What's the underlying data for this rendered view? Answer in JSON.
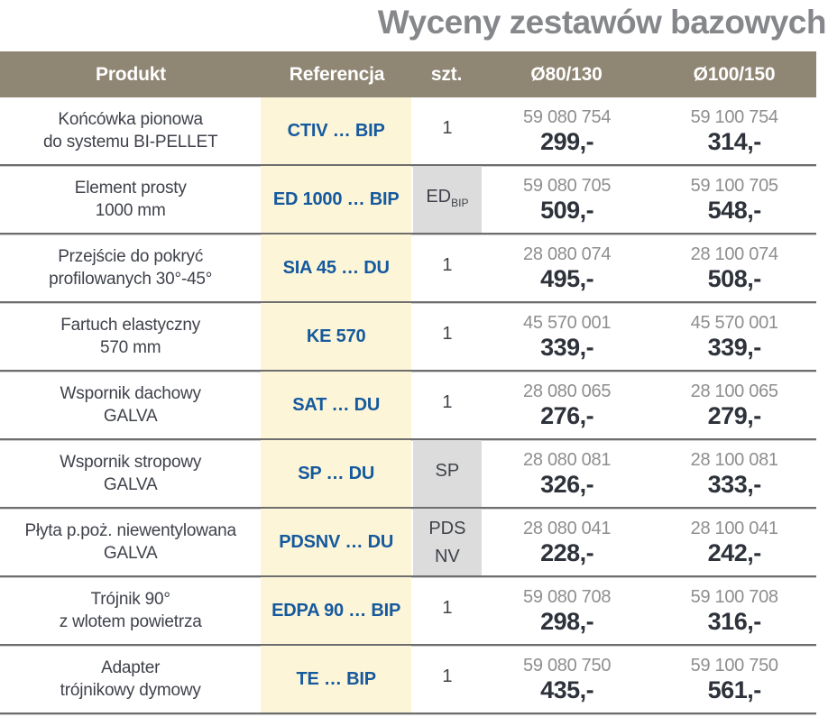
{
  "title": "Wyceny zestawów bazowych",
  "colors": {
    "header_bg": "#8f8674",
    "header_text": "#ffffff",
    "reference_col_bg": "#fcf5d8",
    "reference_text": "#15599e",
    "qty_gray_bg": "#dcdcdc",
    "price_text": "#2e323a",
    "article_code_text": "#8e8e8e",
    "title_text": "#85878a",
    "row_separator": "#6e6e6e"
  },
  "table": {
    "columns": [
      "Produkt",
      "Referencja",
      "szt.",
      "Ø80/130",
      "Ø100/150"
    ],
    "rows": [
      {
        "product_line1": "Końcówka pionowa",
        "product_line2": "do systemu BI-PELLET",
        "reference": "CTIV … BIP",
        "qty": {
          "line1": "1",
          "sub": "",
          "line2": "",
          "gray": false
        },
        "d80": {
          "code": "59 080 754",
          "price": "299,-"
        },
        "d100": {
          "code": "59 100 754",
          "price": "314,-"
        }
      },
      {
        "product_line1": "Element prosty",
        "product_line2": "1000 mm",
        "reference": "ED 1000 … BIP",
        "qty": {
          "line1": "ED",
          "sub": "BIP",
          "line2": "",
          "gray": true
        },
        "d80": {
          "code": "59 080 705",
          "price": "509,-"
        },
        "d100": {
          "code": "59 100 705",
          "price": "548,-"
        }
      },
      {
        "product_line1": "Przejście do pokryć",
        "product_line2": "profilowanych 30°-45°",
        "reference": "SIA 45 … DU",
        "qty": {
          "line1": "1",
          "sub": "",
          "line2": "",
          "gray": false
        },
        "d80": {
          "code": "28 080 074",
          "price": "495,-"
        },
        "d100": {
          "code": "28 100 074",
          "price": "508,-"
        }
      },
      {
        "product_line1": "Fartuch elastyczny",
        "product_line2": "570 mm",
        "reference": "KE 570",
        "qty": {
          "line1": "1",
          "sub": "",
          "line2": "",
          "gray": false
        },
        "d80": {
          "code": "45 570 001",
          "price": "339,-"
        },
        "d100": {
          "code": "45 570 001",
          "price": "339,-"
        }
      },
      {
        "product_line1": "Wspornik dachowy",
        "product_line2": "GALVA",
        "reference": "SAT … DU",
        "qty": {
          "line1": "1",
          "sub": "",
          "line2": "",
          "gray": false
        },
        "d80": {
          "code": "28 080 065",
          "price": "276,-"
        },
        "d100": {
          "code": "28 100 065",
          "price": "279,-"
        }
      },
      {
        "product_line1": "Wspornik stropowy",
        "product_line2": "GALVA",
        "reference": "SP … DU",
        "qty": {
          "line1": "SP",
          "sub": "",
          "line2": "",
          "gray": true
        },
        "d80": {
          "code": "28 080 081",
          "price": "326,-"
        },
        "d100": {
          "code": "28 100 081",
          "price": "333,-"
        }
      },
      {
        "product_line1": "Płyta p.poż. niewentylowana",
        "product_line2": "GALVA",
        "reference": "PDSNV … DU",
        "qty": {
          "line1": "PDS",
          "sub": "",
          "line2": "NV",
          "gray": true
        },
        "d80": {
          "code": "28 080 041",
          "price": "228,-"
        },
        "d100": {
          "code": "28 100 041",
          "price": "242,-"
        }
      },
      {
        "product_line1": "Trójnik 90°",
        "product_line2": "z wlotem powietrza",
        "reference": "EDPA 90 … BIP",
        "qty": {
          "line1": "1",
          "sub": "",
          "line2": "",
          "gray": false
        },
        "d80": {
          "code": "59 080 708",
          "price": "298,-"
        },
        "d100": {
          "code": "59 100 708",
          "price": "316,-"
        }
      },
      {
        "product_line1": "Adapter",
        "product_line2": "trójnikowy dymowy",
        "reference": "TE … BIP",
        "qty": {
          "line1": "1",
          "sub": "",
          "line2": "",
          "gray": false
        },
        "d80": {
          "code": "59 080 750",
          "price": "435,-"
        },
        "d100": {
          "code": "59 100 750",
          "price": "561,-"
        }
      }
    ]
  }
}
